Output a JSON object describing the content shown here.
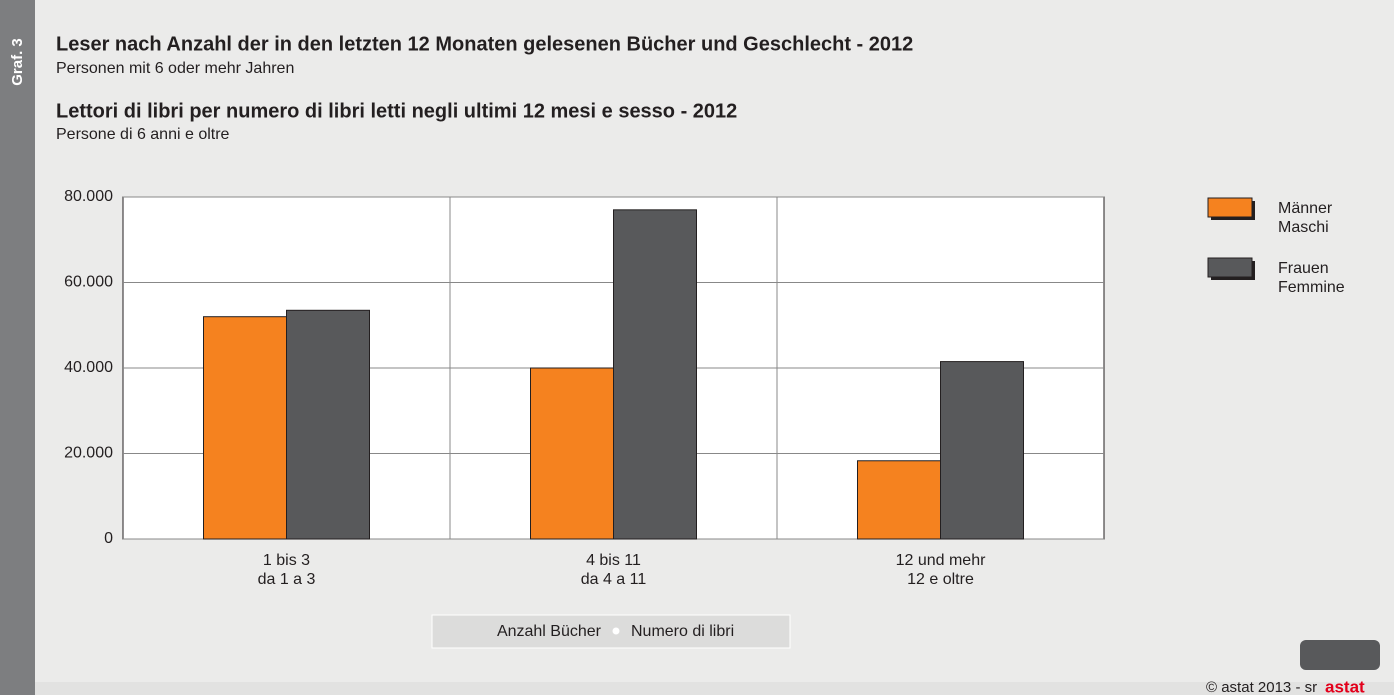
{
  "side_label": "Graf. 3",
  "chart_data": {
    "type": "bar",
    "title": "Leser nach Anzahl der in den letzten 12 Monaten gelesenen Bücher und Geschlecht - 2012",
    "subtitle": "Personen mit 6 oder mehr Jahren",
    "title2": "Lettori di libri per numero di libri letti negli ultimi 12 mesi e sesso - 2012",
    "subtitle2": "Persone di 6 anni e oltre",
    "categories": [
      [
        "1 bis 3",
        "da 1 a 3"
      ],
      [
        "4 bis 11",
        "da 4 a 11"
      ],
      [
        "12 und mehr",
        "12 e oltre"
      ]
    ],
    "series": [
      {
        "name": [
          "Männer",
          "Maschi"
        ],
        "color": "#f5821f",
        "values": [
          52000,
          40000,
          18300
        ]
      },
      {
        "name": [
          "Frauen",
          "Femmine"
        ],
        "color": "#58595b",
        "values": [
          53500,
          77000,
          41500
        ]
      }
    ],
    "x_label": [
      "Anzahl Bücher",
      "Numero di libri"
    ],
    "ylim": [
      0,
      80000
    ],
    "yticks": [
      0,
      {
        "value": 20000,
        "label": "20.000"
      },
      {
        "value": 40000,
        "label": "40.000"
      },
      {
        "value": 60000,
        "label": "60.000"
      },
      {
        "value": 80000,
        "label": "80.000"
      }
    ],
    "grid": true,
    "legend": "right"
  },
  "footer": {
    "copyright": "© astat 2013 - sr",
    "logo": "astat"
  }
}
